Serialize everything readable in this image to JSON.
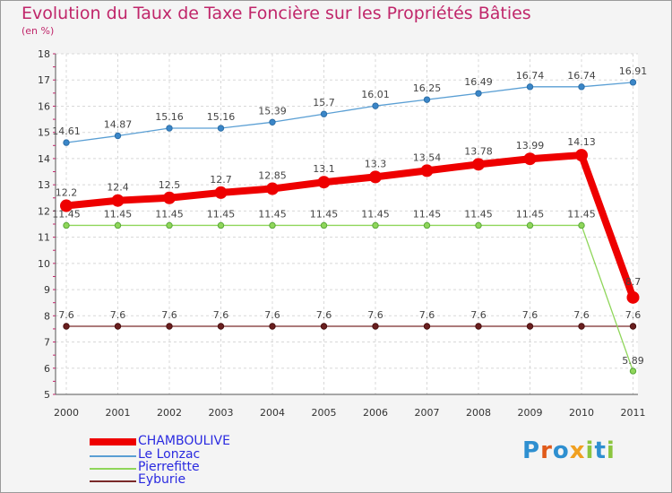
{
  "header": {
    "title": "Evolution du Taux de Taxe Foncière sur les Propriétés Bâties",
    "unit": "(en %)"
  },
  "brand": {
    "text": "Proxiti"
  },
  "chart_data": {
    "type": "line",
    "title": "Evolution du Taux de Taxe Foncière sur les Propriétés Bâties",
    "ylabel": "(en %)",
    "xlabel": "",
    "ylim": [
      5,
      18
    ],
    "yticks": [
      "5",
      "6",
      "7",
      "8",
      "9",
      "10",
      "11",
      "12",
      "13",
      "14",
      "15",
      "16",
      "17",
      "18"
    ],
    "categories": [
      "2000",
      "2001",
      "2002",
      "2003",
      "2004",
      "2005",
      "2006",
      "2007",
      "2008",
      "2009",
      "2010",
      "2011"
    ],
    "series": [
      {
        "name": "CHAMBOULIVE",
        "color": "#ee0000",
        "values": [
          12.2,
          12.4,
          12.5,
          12.7,
          12.85,
          13.1,
          13.3,
          13.54,
          13.78,
          13.99,
          14.13,
          8.7
        ],
        "labels": [
          "12.2",
          "12.4",
          "12.5",
          "12.7",
          "12.85",
          "13.1",
          "13.3",
          "13.54",
          "13.78",
          "13.99",
          "14.13",
          "8.7"
        ]
      },
      {
        "name": "Le Lonzac",
        "color": "#5a9fd4",
        "values": [
          14.61,
          14.87,
          15.16,
          15.16,
          15.39,
          15.7,
          16.01,
          16.25,
          16.49,
          16.74,
          16.74,
          16.91
        ],
        "labels": [
          "14.61",
          "14.87",
          "15.16",
          "15.16",
          "15.39",
          "15.7",
          "16.01",
          "16.25",
          "16.49",
          "16.74",
          "16.74",
          "16.91"
        ]
      },
      {
        "name": "Pierrefitte",
        "color": "#8fd65a",
        "values": [
          11.45,
          11.45,
          11.45,
          11.45,
          11.45,
          11.45,
          11.45,
          11.45,
          11.45,
          11.45,
          11.45,
          5.89
        ],
        "labels": [
          "11.45",
          "11.45",
          "11.45",
          "11.45",
          "11.45",
          "11.45",
          "11.45",
          "11.45",
          "11.45",
          "11.45",
          "11.45",
          "5.89"
        ]
      },
      {
        "name": "Eyburie",
        "color": "#7a2a2a",
        "values": [
          7.6,
          7.6,
          7.6,
          7.6,
          7.6,
          7.6,
          7.6,
          7.6,
          7.6,
          7.6,
          7.6,
          7.6
        ],
        "labels": [
          "7.6",
          "7.6",
          "7.6",
          "7.6",
          "7.6",
          "7.6",
          "7.6",
          "7.6",
          "7.6",
          "7.6",
          "7.6",
          "7.6"
        ]
      }
    ]
  }
}
